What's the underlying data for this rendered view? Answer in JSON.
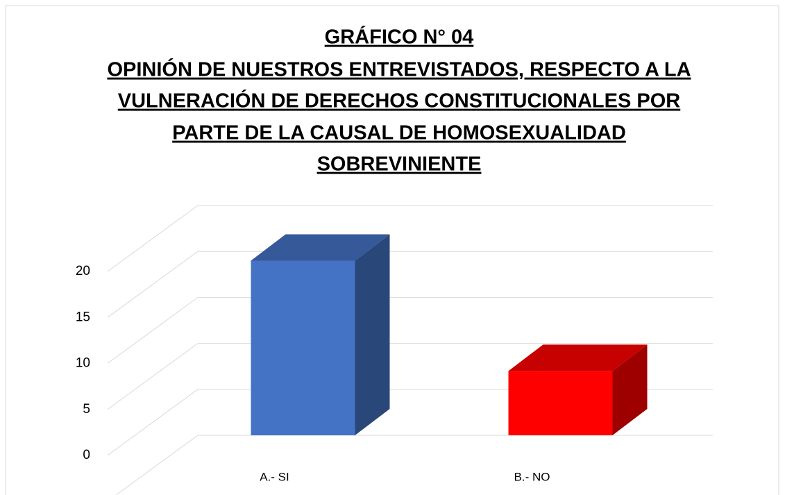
{
  "chart_data": {
    "type": "bar3d",
    "title": "GRÁFICO N° 04",
    "subtitle": [
      "OPINIÓN DE NUESTROS ENTREVISTADOS, RESPECTO A LA",
      "VULNERACIÓN DE DERECHOS CONSTITUCIONALES POR",
      "PARTE DE LA CAUSAL DE HOMOSEXUALIDAD",
      "SOBREVINIENTE"
    ],
    "categories": [
      "A.- SI",
      "B.-  NO"
    ],
    "values": [
      19,
      7
    ],
    "colors": [
      "#4472c4",
      "#ff0000"
    ],
    "ylim": [
      0,
      25
    ],
    "yticks": [
      0,
      5,
      10,
      15,
      20
    ],
    "grid": true
  }
}
